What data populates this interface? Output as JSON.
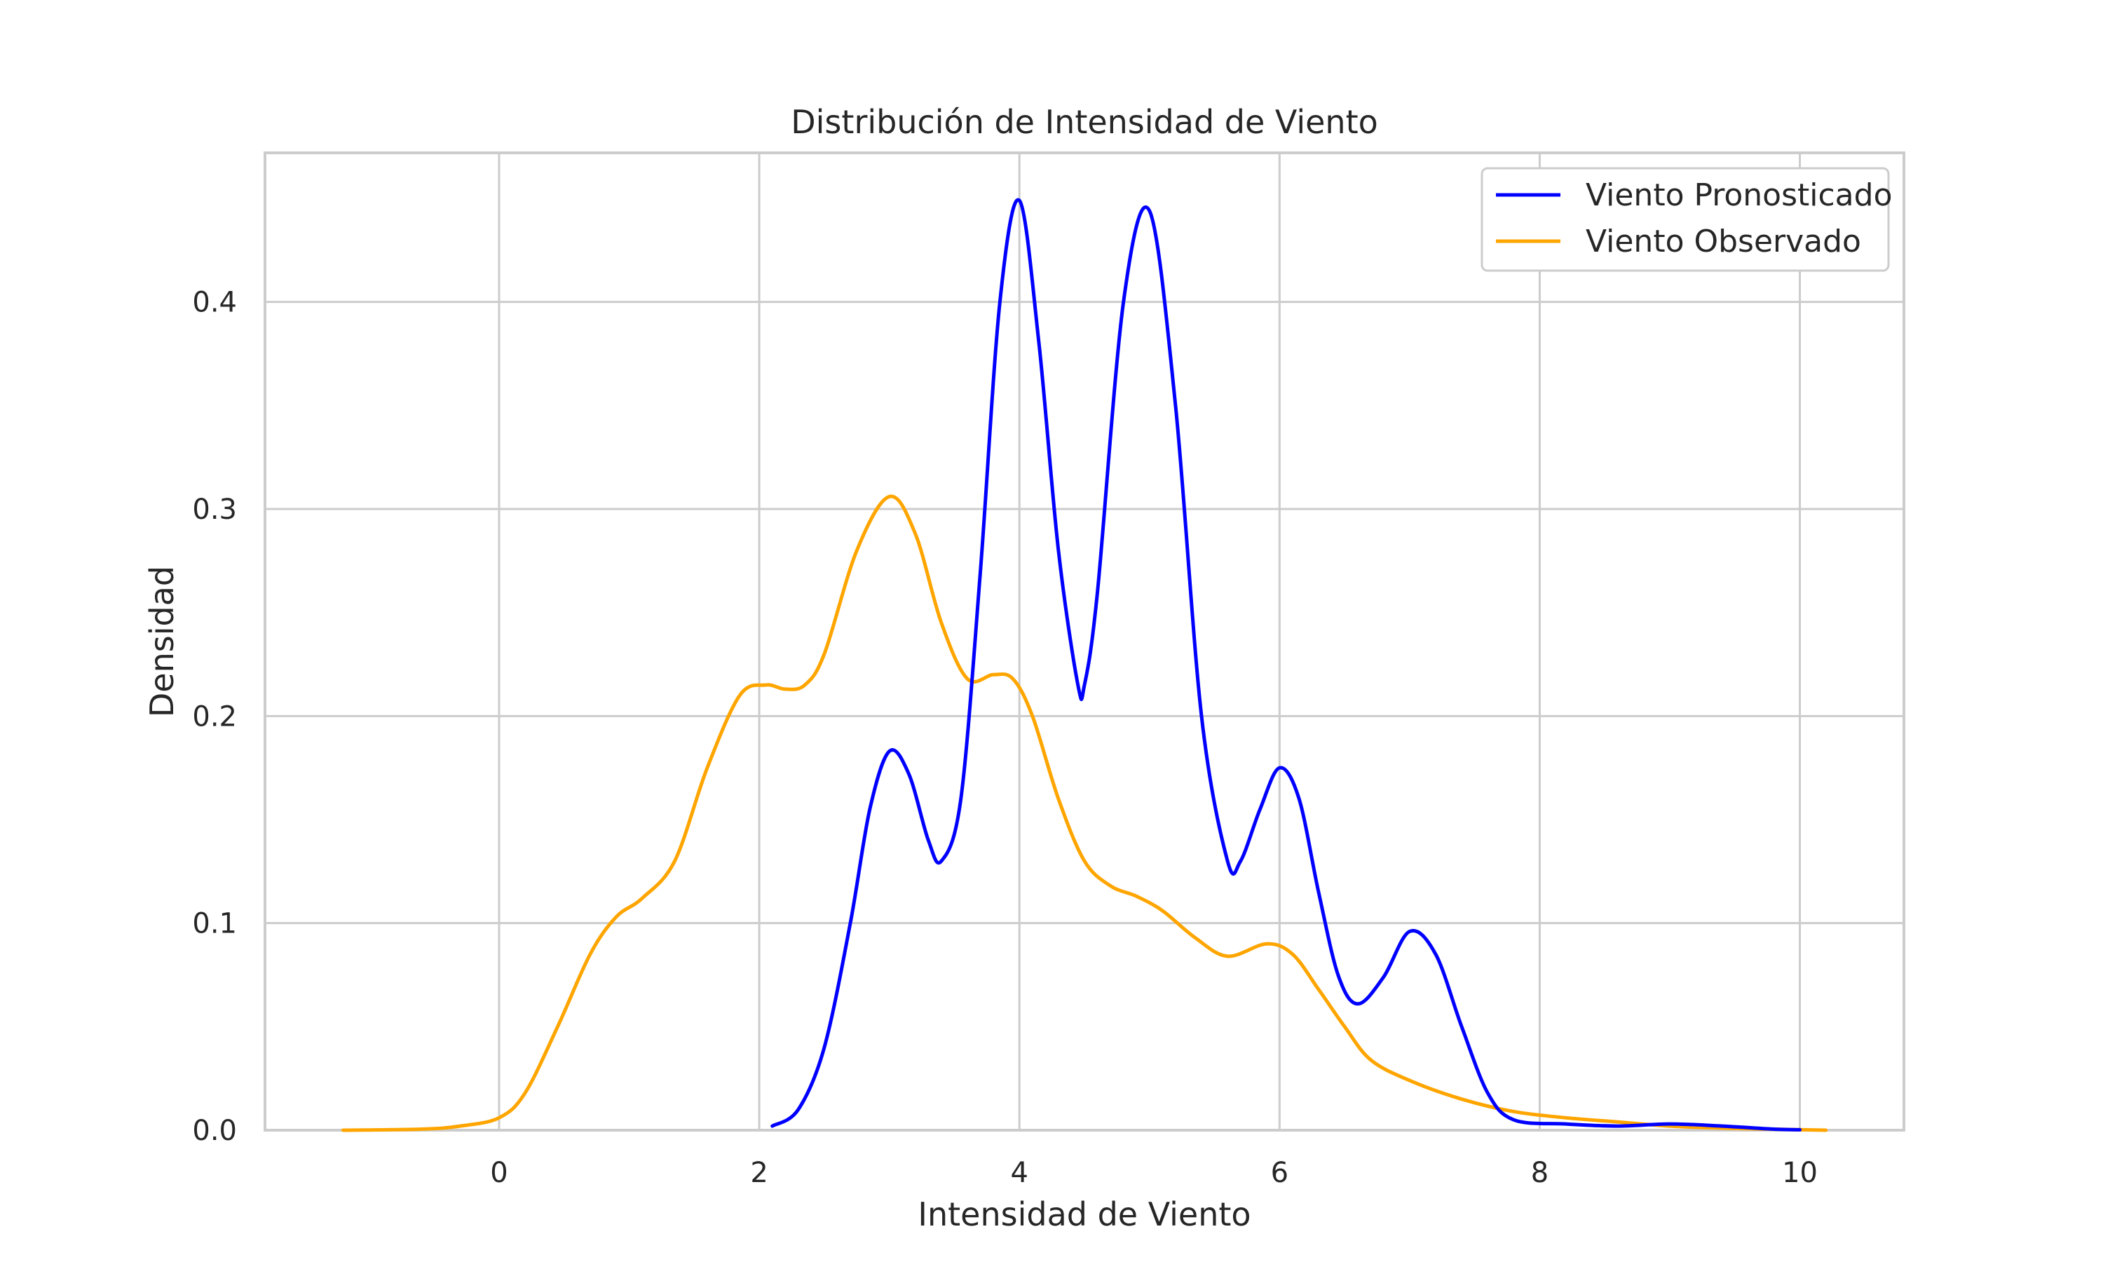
{
  "chart_data": {
    "type": "line",
    "title": "Distribución de Intensidad de Viento",
    "xlabel": "Intensidad de Viento",
    "ylabel": "Densidad",
    "xlim": [
      -1.8,
      10.8
    ],
    "ylim": [
      0,
      0.472
    ],
    "x_ticks": [
      0,
      2,
      4,
      6,
      8,
      10
    ],
    "y_ticks": [
      0.0,
      0.1,
      0.2,
      0.3,
      0.4
    ],
    "x_tick_labels": [
      "0",
      "2",
      "4",
      "6",
      "8",
      "10"
    ],
    "y_tick_labels": [
      "0.0",
      "0.1",
      "0.2",
      "0.3",
      "0.4"
    ],
    "grid": true,
    "legend_position": "top-right",
    "series": [
      {
        "name": "Viento Pronosticado",
        "color": "#0000ff",
        "x": [
          2.1,
          2.3,
          2.5,
          2.7,
          2.85,
          3.0,
          3.15,
          3.3,
          3.4,
          3.55,
          3.7,
          3.85,
          4.0,
          4.15,
          4.3,
          4.45,
          4.5,
          4.6,
          4.8,
          5.0,
          5.2,
          5.4,
          5.6,
          5.7,
          5.85,
          6.0,
          6.15,
          6.3,
          6.45,
          6.6,
          6.8,
          7.0,
          7.2,
          7.4,
          7.6,
          7.8,
          8.2,
          8.6,
          9.0,
          9.4,
          9.8,
          10.0
        ],
        "y": [
          0.002,
          0.01,
          0.04,
          0.1,
          0.155,
          0.183,
          0.172,
          0.14,
          0.13,
          0.16,
          0.27,
          0.4,
          0.449,
          0.38,
          0.28,
          0.215,
          0.215,
          0.26,
          0.4,
          0.444,
          0.35,
          0.2,
          0.13,
          0.13,
          0.155,
          0.175,
          0.16,
          0.115,
          0.075,
          0.061,
          0.074,
          0.096,
          0.085,
          0.05,
          0.018,
          0.005,
          0.003,
          0.002,
          0.003,
          0.002,
          0.0005,
          0.0002
        ]
      },
      {
        "name": "Viento Observado",
        "color": "#ffa500",
        "x": [
          -1.2,
          -0.6,
          -0.3,
          0.0,
          0.2,
          0.45,
          0.7,
          0.9,
          1.1,
          1.35,
          1.6,
          1.85,
          2.05,
          2.2,
          2.35,
          2.5,
          2.75,
          3.0,
          3.2,
          3.4,
          3.6,
          3.8,
          3.95,
          4.1,
          4.3,
          4.5,
          4.7,
          4.9,
          5.1,
          5.35,
          5.6,
          5.9,
          6.1,
          6.3,
          6.5,
          6.7,
          7.0,
          7.4,
          7.8,
          8.2,
          8.6,
          9.0,
          9.4,
          9.8,
          10.2
        ],
        "y": [
          0.0,
          0.0005,
          0.002,
          0.006,
          0.018,
          0.05,
          0.085,
          0.103,
          0.112,
          0.13,
          0.175,
          0.21,
          0.215,
          0.213,
          0.215,
          0.23,
          0.28,
          0.306,
          0.288,
          0.245,
          0.218,
          0.22,
          0.218,
          0.2,
          0.16,
          0.13,
          0.118,
          0.113,
          0.106,
          0.093,
          0.084,
          0.09,
          0.085,
          0.068,
          0.05,
          0.034,
          0.024,
          0.015,
          0.009,
          0.006,
          0.004,
          0.002,
          0.001,
          0.0005,
          0.0
        ]
      }
    ]
  }
}
